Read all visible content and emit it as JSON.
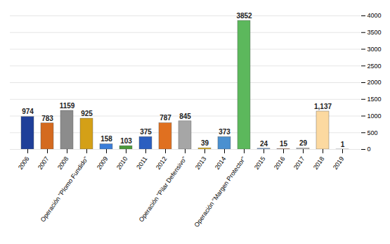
{
  "chart_data": {
    "type": "bar",
    "categories": [
      "2006",
      "2007",
      "2008",
      "Operación \"Plomo Fundido\"",
      "2009",
      "2010",
      "2011",
      "2012",
      "Operación \"Pilar Defensivo\"",
      "2013",
      "2014",
      "Operación \"Margen Protector\"",
      "2015",
      "2016",
      "2017",
      "2018",
      "2019"
    ],
    "values": [
      974,
      783,
      1159,
      925,
      158,
      103,
      375,
      787,
      845,
      39,
      373,
      3852,
      24,
      15,
      29,
      1137,
      1
    ],
    "value_labels": [
      "974",
      "783",
      "1159",
      "925",
      "158",
      "103",
      "375",
      "787",
      "845",
      "39",
      "373",
      "3852",
      "24",
      "15",
      "29",
      "1,137",
      "1"
    ],
    "colors": [
      "#1f3f99",
      "#d46a1f",
      "#8c8c8c",
      "#d4a017",
      "#3b7dd8",
      "#4a9a3a",
      "#2b5fc0",
      "#e07020",
      "#a6a6a6",
      "#e8b820",
      "#4a90d0",
      "#5cb85c",
      "#7fa7d8",
      "#f0a080",
      "#c0c0c0",
      "#fcd9a0",
      "#8fa8c8"
    ],
    "ylim": [
      0,
      4000
    ],
    "yticks": [
      0,
      500,
      1000,
      1500,
      2000,
      2500,
      3000,
      3500,
      4000
    ],
    "grid": true,
    "data_labels": true
  }
}
